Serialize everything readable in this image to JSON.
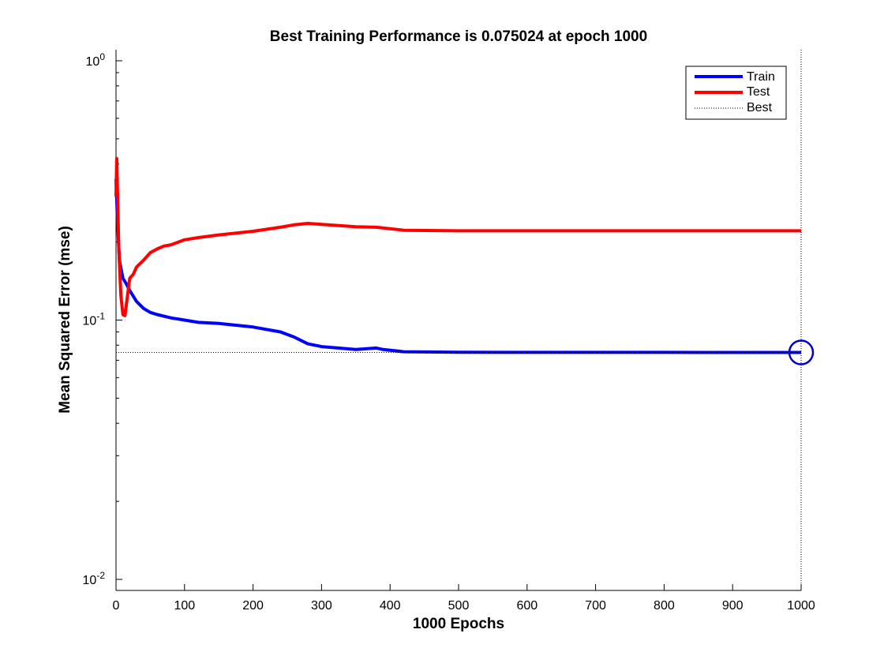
{
  "chart_data": {
    "type": "line",
    "title": "Best Training Performance is 0.075024 at epoch 1000",
    "xlabel": "1000 Epochs",
    "ylabel": "Mean Squared Error  (mse)",
    "xlim": [
      0,
      1000
    ],
    "ylim": [
      0.01,
      1
    ],
    "yscale": "log",
    "xticks": [
      "0",
      "100",
      "200",
      "300",
      "400",
      "500",
      "600",
      "700",
      "800",
      "900",
      "1000"
    ],
    "yticks": [
      {
        "base": "10",
        "exp": "-2",
        "value": 0.01
      },
      {
        "base": "10",
        "exp": "-1",
        "value": 0.1
      },
      {
        "base": "10",
        "exp": "0",
        "value": 1
      }
    ],
    "legend_position": "top-right",
    "best": {
      "epoch": 1000,
      "value": 0.075024
    },
    "series": [
      {
        "name": "Train",
        "color": "#0000ff",
        "x": [
          0,
          2,
          5,
          10,
          15,
          20,
          30,
          40,
          50,
          60,
          80,
          100,
          120,
          150,
          200,
          240,
          260,
          280,
          300,
          350,
          380,
          390,
          420,
          500,
          600,
          700,
          800,
          900,
          1000
        ],
        "y": [
          0.35,
          0.25,
          0.17,
          0.145,
          0.138,
          0.13,
          0.118,
          0.111,
          0.107,
          0.105,
          0.102,
          0.1,
          0.098,
          0.097,
          0.094,
          0.09,
          0.086,
          0.081,
          0.079,
          0.077,
          0.078,
          0.077,
          0.0755,
          0.0752,
          0.0751,
          0.0751,
          0.0751,
          0.075,
          0.075024
        ]
      },
      {
        "name": "Test",
        "color": "#ff0000",
        "x": [
          0,
          1,
          2,
          4,
          7,
          10,
          13,
          16,
          20,
          25,
          30,
          40,
          50,
          60,
          70,
          80,
          100,
          120,
          150,
          200,
          240,
          260,
          280,
          300,
          350,
          380,
          400,
          420,
          500,
          600,
          700,
          800,
          900,
          1000
        ],
        "y": [
          0.3,
          0.42,
          0.33,
          0.19,
          0.125,
          0.105,
          0.104,
          0.12,
          0.145,
          0.15,
          0.16,
          0.17,
          0.182,
          0.188,
          0.193,
          0.195,
          0.204,
          0.208,
          0.213,
          0.22,
          0.228,
          0.233,
          0.236,
          0.234,
          0.229,
          0.228,
          0.225,
          0.222,
          0.221,
          0.221,
          0.221,
          0.221,
          0.221,
          0.221
        ]
      },
      {
        "name": "Best",
        "color": "#000000",
        "style": "dotted",
        "x": [
          0,
          1000
        ],
        "y": [
          0.075024,
          0.075024
        ]
      }
    ]
  }
}
